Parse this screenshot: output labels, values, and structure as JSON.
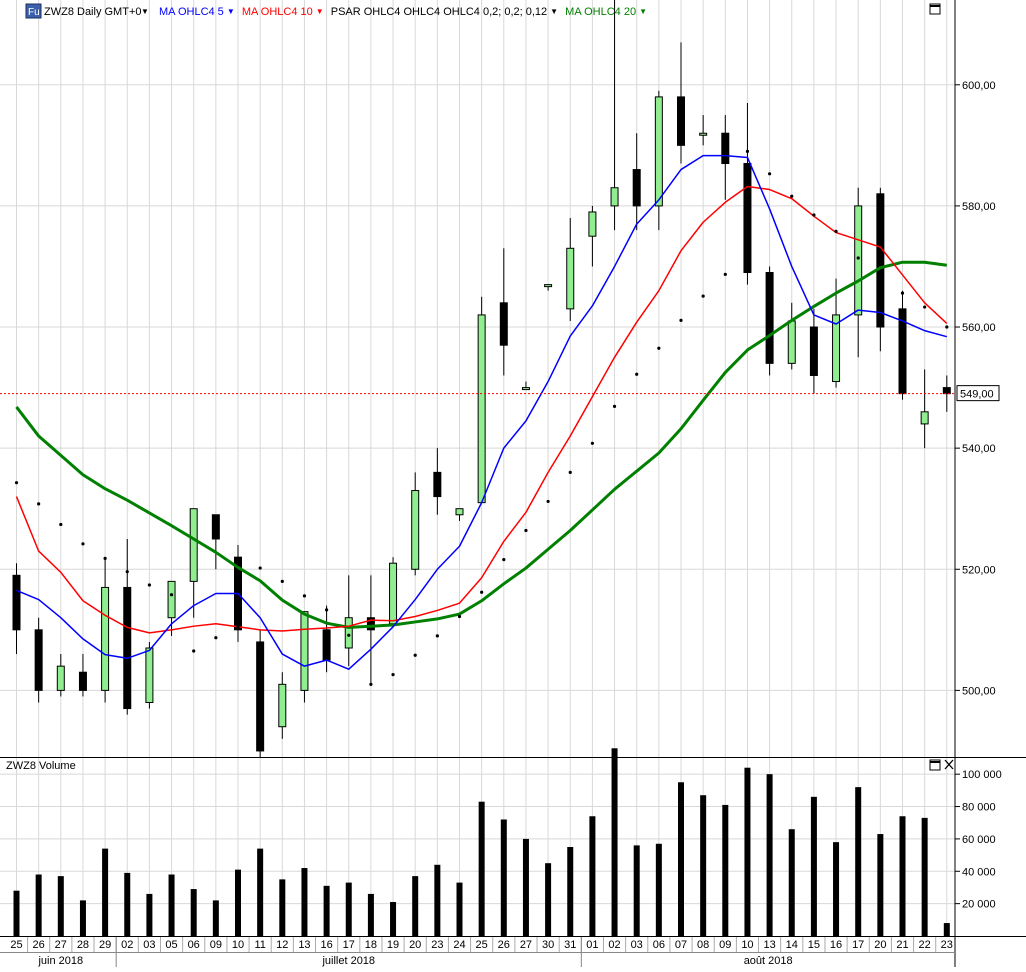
{
  "header": {
    "badge": "Fu",
    "symbol_label": "ZWZ8 Daily GMT+0",
    "indicators": [
      {
        "label": "MA OHLC4  5",
        "color": "#0000ff"
      },
      {
        "label": "MA OHLC4  10",
        "color": "#ff0000"
      },
      {
        "label": "PSAR OHLC4 OHLC4 OHLC4  0,2; 0,2; 0,12",
        "color": "#000000"
      },
      {
        "label": "MA OHLC4  20",
        "color": "#008000"
      }
    ]
  },
  "volume_panel": {
    "title": "ZWZ8 Volume"
  },
  "current_price_label": "549,00",
  "month_labels": [
    "juin 2018",
    "juillet 2018",
    "août 2018"
  ],
  "colors": {
    "up": "#90ee90",
    "down": "#000000",
    "ma5": "#0000ff",
    "ma10": "#ff0000",
    "ma20": "#008000",
    "last_price": "#ff0000"
  },
  "chart_data": {
    "type": "candlestick",
    "price_axis": {
      "ticks": [
        500,
        520,
        540,
        560,
        580,
        600
      ],
      "tick_labels": [
        "500,00",
        "520,00",
        "540,00",
        "560,00",
        "580,00",
        "600,00"
      ],
      "ylim": [
        489,
        614
      ]
    },
    "volume_axis": {
      "ticks": [
        20000,
        40000,
        60000,
        80000,
        100000
      ],
      "tick_labels": [
        "20 000",
        "40 000",
        "60 000",
        "80 000",
        "100 000"
      ],
      "ylim": [
        0,
        110000
      ]
    },
    "last_price": 549,
    "dates": [
      "25",
      "26",
      "27",
      "28",
      "29",
      "02",
      "03",
      "05",
      "06",
      "09",
      "10",
      "11",
      "12",
      "13",
      "16",
      "17",
      "18",
      "19",
      "20",
      "23",
      "24",
      "25",
      "26",
      "27",
      "30",
      "31",
      "01",
      "02",
      "03",
      "06",
      "07",
      "08",
      "09",
      "10",
      "13",
      "14",
      "15",
      "16",
      "17",
      "20",
      "21",
      "22",
      "23"
    ],
    "open": [
      519,
      510,
      500,
      503,
      500,
      517,
      498,
      512,
      518,
      529,
      522,
      508,
      494,
      500,
      510,
      507,
      512,
      511,
      520,
      536,
      529,
      531,
      564,
      550,
      567,
      563,
      575,
      580,
      586,
      580,
      598,
      592,
      592,
      587,
      569,
      554,
      560,
      551,
      562,
      582,
      563,
      544,
      550
    ],
    "high": [
      521,
      512,
      506,
      506,
      522,
      525,
      508,
      518,
      530,
      529,
      524,
      510,
      503,
      513,
      514,
      519,
      519,
      522,
      536,
      540,
      530,
      565,
      573,
      551,
      567,
      578,
      580,
      616,
      592,
      599,
      607,
      595,
      595,
      597,
      570,
      564,
      563,
      568,
      583,
      583,
      566,
      553,
      552
    ],
    "low": [
      506,
      498,
      499,
      499,
      498,
      496,
      497,
      509,
      512,
      520,
      508,
      489,
      492,
      498,
      503,
      504,
      501,
      511,
      519,
      529,
      528,
      531,
      552,
      550,
      566,
      561,
      570,
      576,
      576,
      576,
      587,
      590,
      581,
      567,
      552,
      553,
      549,
      550,
      555,
      556,
      548,
      540,
      546
    ],
    "close": [
      510,
      500,
      504,
      500,
      517,
      497,
      507,
      518,
      530,
      525,
      510,
      490,
      501,
      513,
      505,
      512,
      510,
      521,
      533,
      532,
      530,
      562,
      557,
      550,
      567,
      573,
      579,
      583,
      580,
      598,
      590,
      592,
      587,
      569,
      554,
      561,
      552,
      562,
      580,
      560,
      549,
      546,
      549
    ],
    "volume": [
      28000,
      38000,
      37000,
      22000,
      54000,
      39000,
      26000,
      38000,
      29000,
      22000,
      41000,
      54000,
      35000,
      42000,
      31000,
      33000,
      26000,
      21000,
      37000,
      44000,
      33000,
      83000,
      72000,
      60000,
      45000,
      55000,
      74000,
      116000,
      56000,
      57000,
      95000,
      87000,
      81000,
      104000,
      100000,
      66000,
      86000,
      58000,
      92000,
      63000,
      74000,
      73000,
      8000
    ],
    "ma5": [
      516.5,
      515,
      512,
      508.5,
      505.9,
      505.3,
      506.6,
      511,
      514,
      516,
      516,
      512,
      506,
      504,
      505,
      503.5,
      506.8,
      510.5,
      515,
      520,
      523.8,
      531,
      540,
      544.5,
      551,
      558.5,
      563.5,
      570,
      577,
      581,
      586,
      588.3,
      588.3,
      588,
      579.5,
      570,
      562,
      560.5,
      562.8,
      562.4,
      561,
      559.4,
      558.4
    ],
    "ma10": [
      532,
      523,
      519.5,
      514.8,
      512.4,
      510.4,
      509.5,
      510,
      510.6,
      511,
      510.5,
      510,
      509.8,
      510.1,
      510.3,
      510.6,
      511.6,
      511.5,
      512.2,
      513.2,
      514.4,
      518.6,
      524.6,
      529.4,
      536,
      542,
      548.5,
      555,
      560.8,
      566,
      572.6,
      577.3,
      580.6,
      583.2,
      582.7,
      581.2,
      578.3,
      575.6,
      574.4,
      573.2,
      568.6,
      564,
      560.6
    ],
    "ma20": [
      546.8,
      542,
      538.8,
      535.6,
      533.3,
      531.4,
      529.3,
      527.2,
      525,
      522.8,
      520.3,
      518.1,
      514.9,
      512.6,
      511.1,
      510.4,
      510.6,
      510.8,
      511.3,
      511.8,
      512.6,
      514.8,
      517.6,
      520.2,
      523.3,
      526.4,
      529.8,
      533.2,
      536.2,
      539.2,
      543.2,
      547.9,
      552.5,
      556.2,
      558.6,
      561.1,
      563.4,
      565.6,
      567.6,
      569.8,
      570.7,
      570.7,
      570.2
    ],
    "psar": [
      534.3,
      530.8,
      527.4,
      524.2,
      521.8,
      519.6,
      517.4,
      515.8,
      506.5,
      508.7,
      510.5,
      520.2,
      518.0,
      515.6,
      513.3,
      509.1,
      501.0,
      502.6,
      505.8,
      509.0,
      512.2,
      516.2,
      521.6,
      526.4,
      531.2,
      536.0,
      540.8,
      546.9,
      552.2,
      556.5,
      561.1,
      565.1,
      568.7,
      589.0,
      585.3,
      581.6,
      578.5,
      575.8,
      571.4,
      568.3,
      565.6,
      563.3,
      560.0
    ]
  }
}
